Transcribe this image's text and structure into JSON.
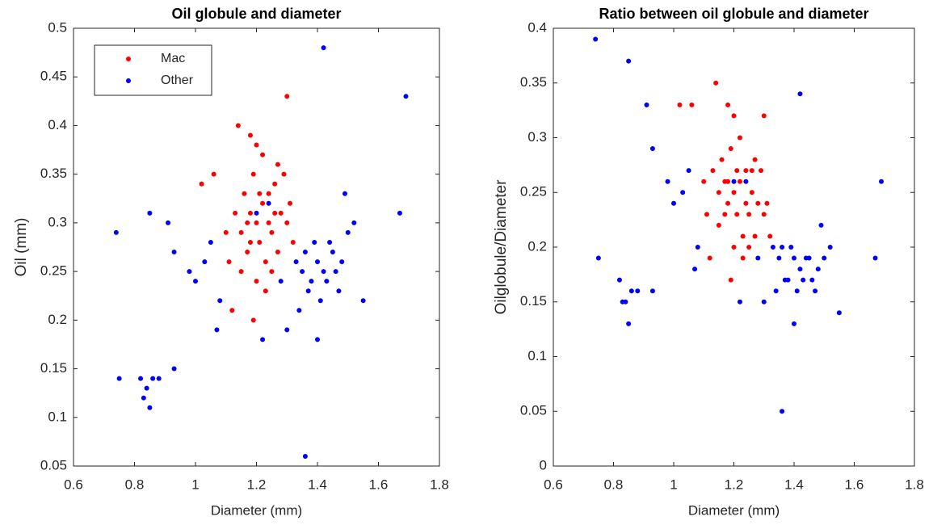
{
  "chart_data": [
    {
      "type": "scatter",
      "title": "Oil globule and diameter",
      "x_label": "Diameter (mm)",
      "y_label": "Oil (mm)",
      "xlim": [
        0.6,
        1.8
      ],
      "xticks": [
        0.6,
        0.8,
        1,
        1.2,
        1.4,
        1.6,
        1.8
      ],
      "ylim": [
        0.05,
        0.5
      ],
      "yticks": [
        0.05,
        0.1,
        0.15,
        0.2,
        0.25,
        0.3,
        0.35,
        0.4,
        0.45,
        0.5
      ],
      "legend": "upper-left",
      "series": [
        {
          "name": "Mac",
          "color": "#ff0000",
          "x": [
            1.15,
            1.18,
            1.2,
            1.22,
            1.25,
            1.28,
            1.17,
            1.21,
            1.24,
            1.19,
            1.23,
            1.26,
            1.3,
            1.13,
            1.16,
            1.27,
            1.2,
            1.22,
            1.18,
            1.14,
            1.3,
            1.02,
            1.06,
            1.12,
            1.19,
            1.25,
            1.31,
            1.29,
            1.11,
            1.21,
            1.24,
            1.17,
            1.23,
            1.27,
            1.15,
            1.2,
            1.32,
            1.1,
            1.26,
            1.18
          ],
          "values": [
            0.29,
            0.31,
            0.3,
            0.32,
            0.29,
            0.31,
            0.27,
            0.28,
            0.33,
            0.35,
            0.26,
            0.34,
            0.3,
            0.31,
            0.33,
            0.27,
            0.24,
            0.37,
            0.39,
            0.4,
            0.43,
            0.34,
            0.35,
            0.21,
            0.2,
            0.25,
            0.32,
            0.35,
            0.26,
            0.33,
            0.3,
            0.3,
            0.23,
            0.36,
            0.25,
            0.38,
            0.28,
            0.29,
            0.31,
            0.28
          ]
        },
        {
          "name": "Other",
          "color": "#0000ff",
          "x": [
            1.35,
            1.38,
            1.4,
            1.42,
            1.45,
            1.37,
            1.41,
            1.44,
            1.48,
            1.5,
            1.52,
            1.39,
            1.36,
            1.43,
            1.46,
            1.33,
            1.47,
            1.55,
            1.49,
            1.42,
            1.69,
            1.67,
            1.36,
            1.4,
            1.3,
            1.22,
            1.34,
            0.74,
            0.85,
            0.91,
            0.93,
            1.0,
            1.03,
            1.07,
            1.05,
            0.98,
            1.08,
            0.82,
            0.84,
            0.85,
            0.86,
            0.83,
            0.75,
            0.93,
            0.88,
            1.24,
            1.2,
            1.28
          ],
          "values": [
            0.25,
            0.24,
            0.26,
            0.25,
            0.27,
            0.23,
            0.22,
            0.28,
            0.26,
            0.29,
            0.3,
            0.28,
            0.27,
            0.24,
            0.25,
            0.26,
            0.23,
            0.22,
            0.33,
            0.48,
            0.43,
            0.31,
            0.06,
            0.18,
            0.19,
            0.18,
            0.21,
            0.29,
            0.31,
            0.3,
            0.27,
            0.24,
            0.26,
            0.19,
            0.28,
            0.25,
            0.22,
            0.14,
            0.13,
            0.11,
            0.14,
            0.12,
            0.14,
            0.15,
            0.14,
            0.32,
            0.31,
            0.24
          ]
        }
      ]
    },
    {
      "type": "scatter",
      "title": "Ratio between oil globule and diameter",
      "x_label": "Diameter (mm)",
      "y_label": "Oilglobule/Diameter",
      "xlim": [
        0.6,
        1.8
      ],
      "xticks": [
        0.6,
        0.8,
        1,
        1.2,
        1.4,
        1.6,
        1.8
      ],
      "ylim": [
        0,
        0.4
      ],
      "yticks": [
        0,
        0.05,
        0.1,
        0.15,
        0.2,
        0.25,
        0.3,
        0.35,
        0.4
      ],
      "series": [
        {
          "color": "#ff0000",
          "x": [
            1.15,
            1.18,
            1.2,
            1.22,
            1.25,
            1.28,
            1.17,
            1.21,
            1.24,
            1.19,
            1.23,
            1.26,
            1.3,
            1.13,
            1.16,
            1.27,
            1.2,
            1.22,
            1.18,
            1.14,
            1.3,
            1.02,
            1.06,
            1.12,
            1.19,
            1.25,
            1.31,
            1.29,
            1.11,
            1.21,
            1.24,
            1.17,
            1.23,
            1.27,
            1.15,
            1.2,
            1.32,
            1.1,
            1.26,
            1.18
          ],
          "values": [
            0.25,
            0.26,
            0.25,
            0.26,
            0.23,
            0.24,
            0.23,
            0.23,
            0.27,
            0.29,
            0.21,
            0.27,
            0.23,
            0.27,
            0.28,
            0.21,
            0.2,
            0.3,
            0.33,
            0.35,
            0.32,
            0.33,
            0.33,
            0.19,
            0.17,
            0.2,
            0.24,
            0.27,
            0.23,
            0.27,
            0.24,
            0.26,
            0.19,
            0.28,
            0.22,
            0.32,
            0.21,
            0.26,
            0.25,
            0.24
          ]
        },
        {
          "color": "#0000ff",
          "x": [
            1.35,
            1.38,
            1.4,
            1.42,
            1.45,
            1.37,
            1.41,
            1.44,
            1.48,
            1.5,
            1.52,
            1.39,
            1.36,
            1.43,
            1.46,
            1.33,
            1.47,
            1.55,
            1.49,
            1.42,
            1.69,
            1.67,
            1.36,
            1.4,
            1.3,
            1.22,
            1.34,
            0.74,
            0.85,
            0.91,
            0.93,
            1.0,
            1.03,
            1.07,
            1.05,
            0.98,
            1.08,
            0.82,
            0.84,
            0.85,
            0.86,
            0.83,
            0.75,
            0.93,
            0.88,
            1.24,
            1.2,
            1.28
          ],
          "values": [
            0.19,
            0.17,
            0.19,
            0.18,
            0.19,
            0.17,
            0.16,
            0.19,
            0.18,
            0.19,
            0.2,
            0.2,
            0.2,
            0.17,
            0.17,
            0.2,
            0.16,
            0.14,
            0.22,
            0.34,
            0.26,
            0.19,
            0.05,
            0.13,
            0.15,
            0.15,
            0.16,
            0.39,
            0.37,
            0.33,
            0.29,
            0.24,
            0.25,
            0.18,
            0.27,
            0.26,
            0.2,
            0.17,
            0.15,
            0.13,
            0.16,
            0.15,
            0.19,
            0.16,
            0.16,
            0.26,
            0.26,
            0.19
          ]
        }
      ]
    }
  ]
}
